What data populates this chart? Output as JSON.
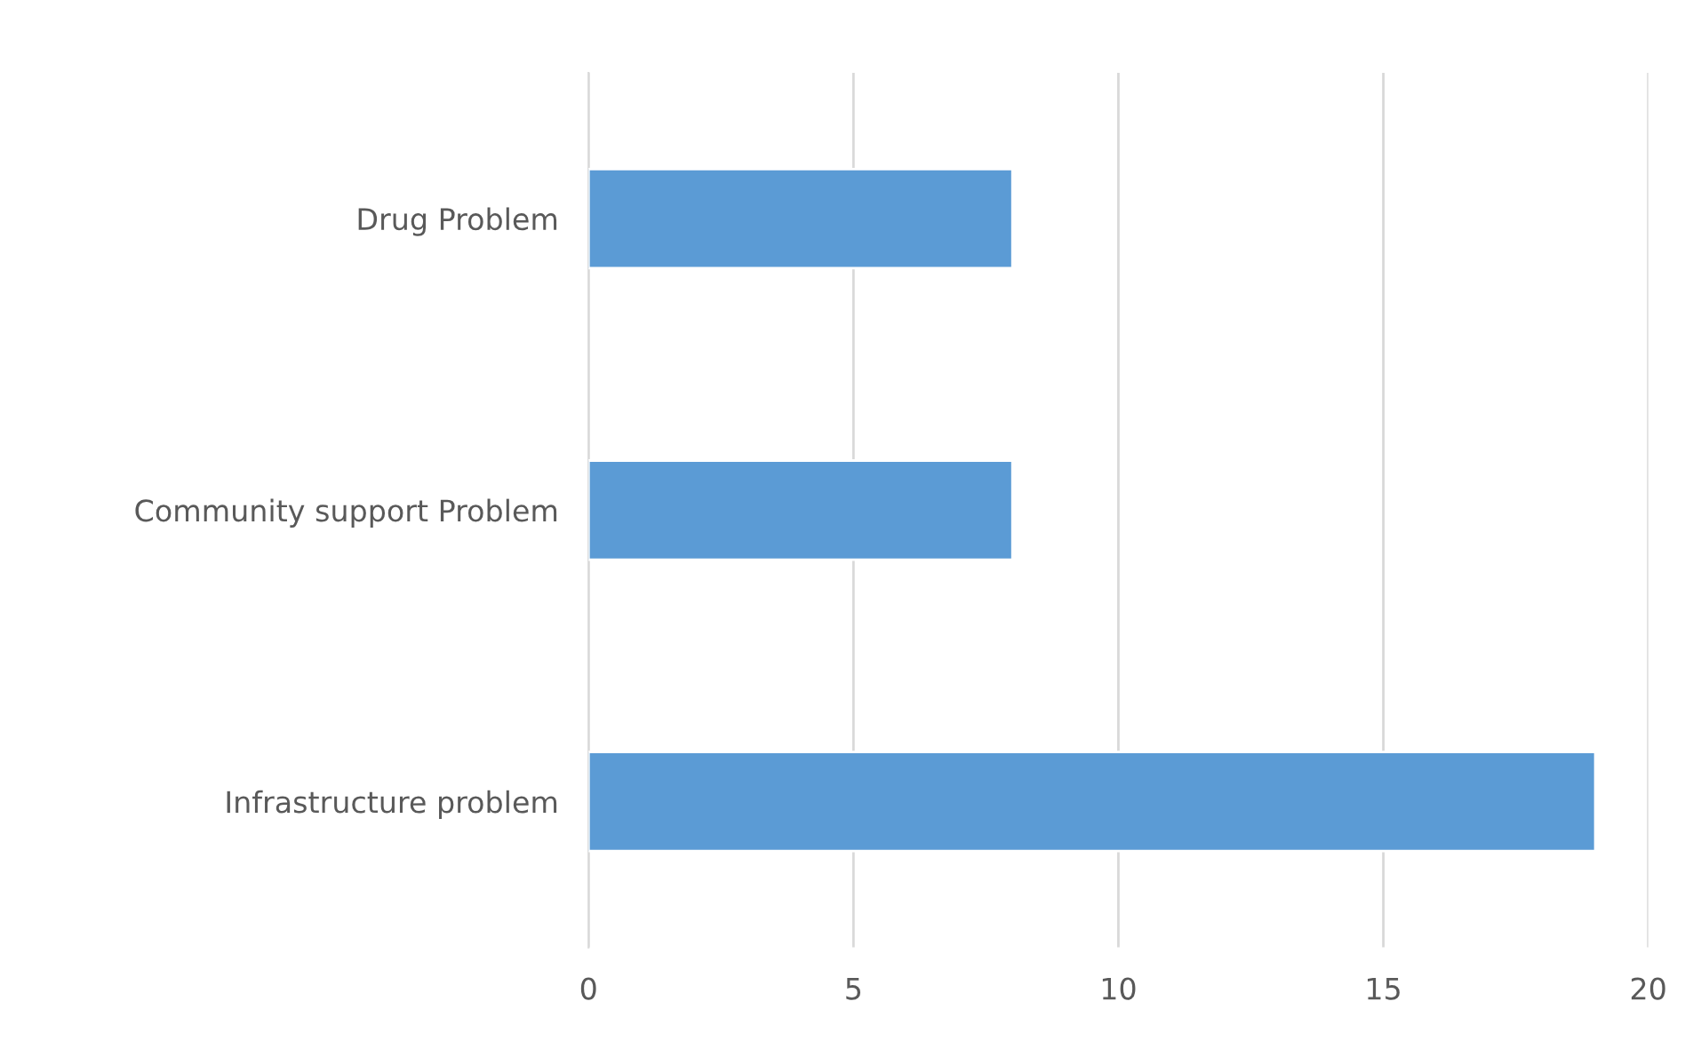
{
  "chart_data": {
    "type": "bar",
    "orientation": "horizontal",
    "categories": [
      "Drug Problem",
      "Community support Problem",
      "Infrastructure problem"
    ],
    "values": [
      8,
      8,
      19
    ],
    "color": "#5b9bd5",
    "xlim": [
      0,
      20
    ],
    "xticks": [
      0,
      5,
      10,
      15,
      20
    ],
    "grid": "x",
    "legend": false
  }
}
